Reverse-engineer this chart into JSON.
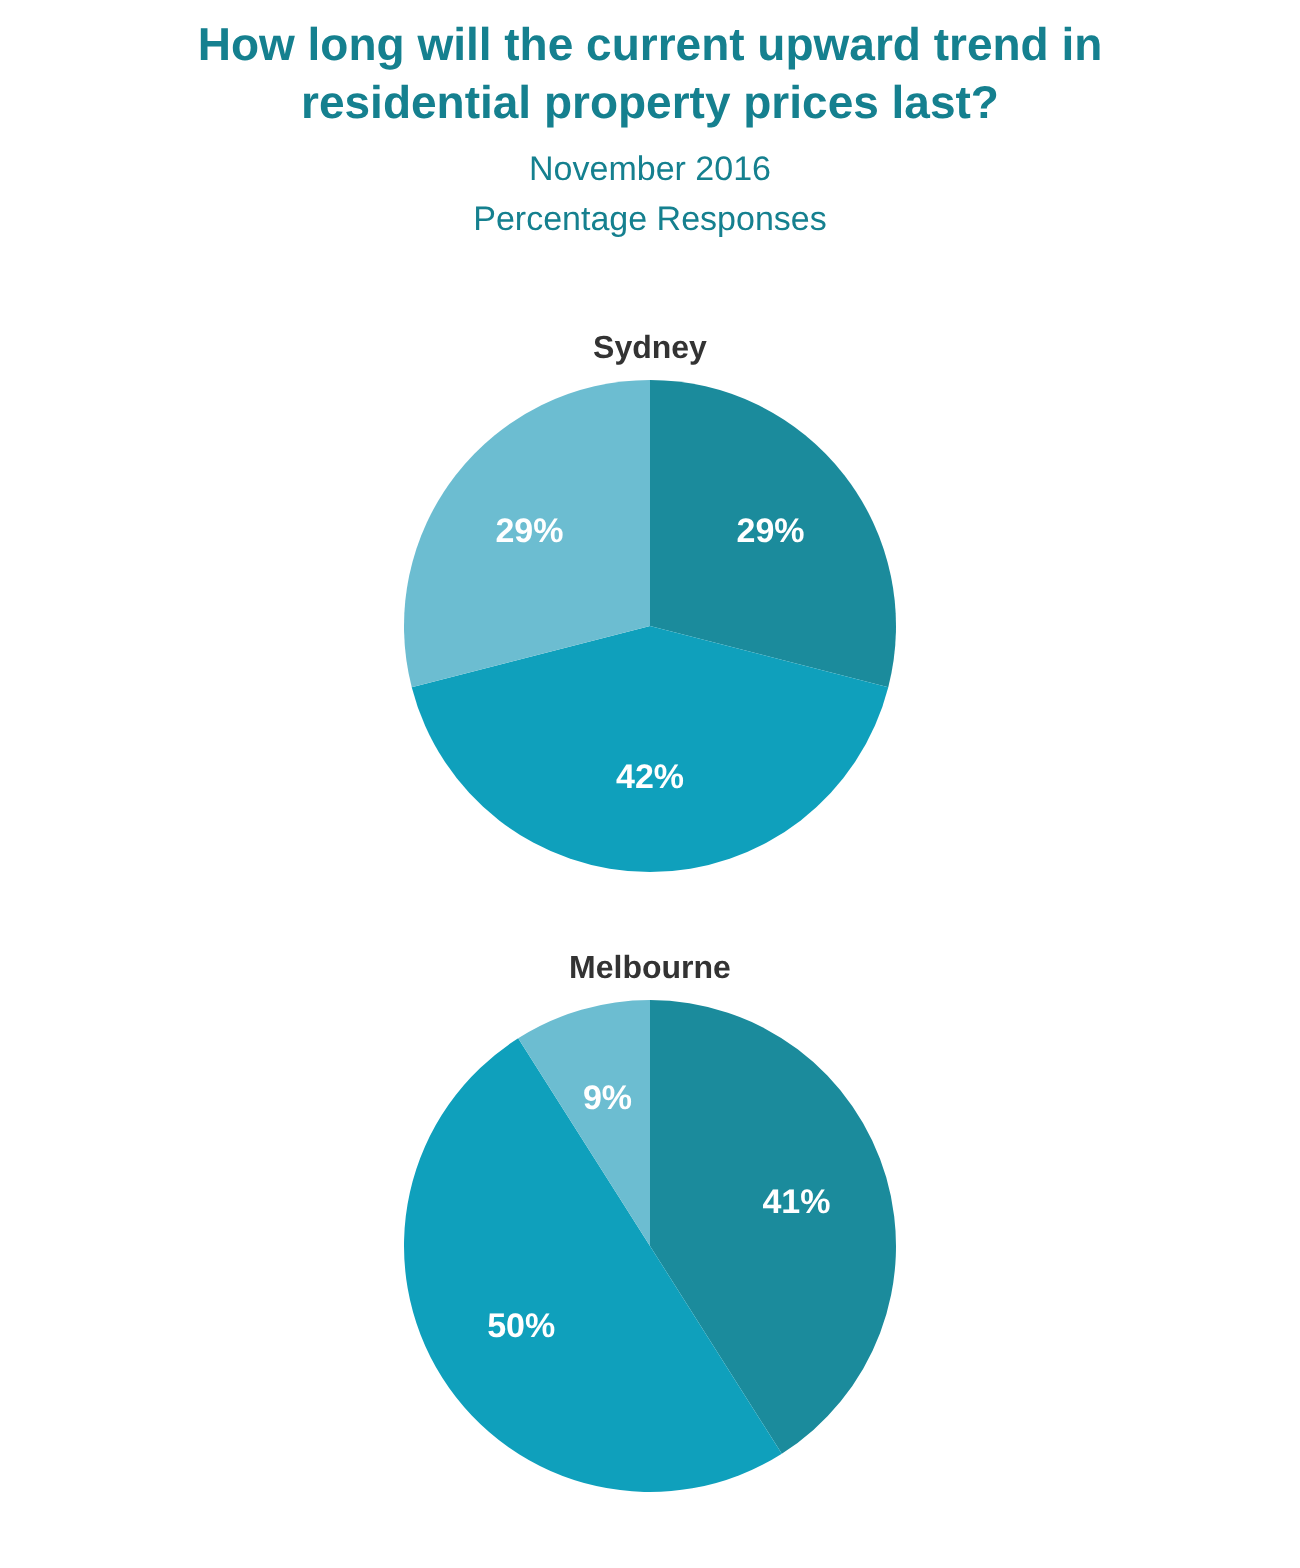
{
  "chart_data": [
    {
      "type": "pie",
      "title": "Sydney",
      "annotations": [
        "How long will the current upward trend in residential property prices last?",
        "November 2016",
        "Percentage Responses"
      ],
      "categories": [
        null,
        null,
        null
      ],
      "values": [
        29,
        42,
        29
      ],
      "colors": [
        "#1b8b9c",
        "#0fa0bc",
        "#6cbdd1"
      ],
      "value_labels": [
        "29%",
        "42%",
        "29%"
      ]
    },
    {
      "type": "pie",
      "title": "Melbourne",
      "categories": [
        null,
        null,
        null
      ],
      "values": [
        41,
        50,
        9
      ],
      "colors": [
        "#1b8b9c",
        "#0fa0bc",
        "#6cbdd1"
      ],
      "value_labels": [
        "41%",
        "50%",
        "9%"
      ]
    }
  ]
}
